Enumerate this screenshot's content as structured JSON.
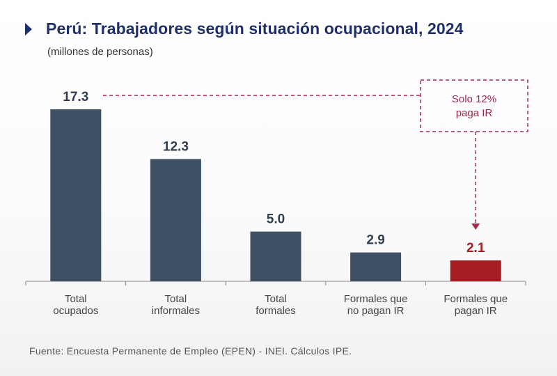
{
  "header": {
    "title": "Perú: Trabajadores según situación ocupacional, 2024",
    "subtitle": "(millones de personas)"
  },
  "chart_data": {
    "type": "bar",
    "title": "Perú: Trabajadores según situación ocupacional, 2024",
    "subtitle": "(millones de personas)",
    "ylabel": "millones de personas",
    "xlabel": "",
    "ylim": [
      0,
      18.5
    ],
    "grid": false,
    "categories": [
      [
        "Total",
        "ocupados"
      ],
      [
        "Total",
        "informales"
      ],
      [
        "Total",
        "formales"
      ],
      [
        "Formales que",
        "no pagan IR"
      ],
      [
        "Formales que",
        "pagan IR"
      ]
    ],
    "values": [
      17.3,
      12.3,
      5.0,
      2.9,
      2.1
    ],
    "value_labels": [
      "17.3",
      "12.3",
      "5.0",
      "2.9",
      "2.1"
    ],
    "highlight_index": 4,
    "colors": {
      "bar": "#3d5063",
      "highlight": "#a51d22",
      "annotation": "#a3274a",
      "axis": "#888888",
      "value_text": "#2e3e50"
    },
    "annotation": {
      "text": [
        "Solo 12%",
        "paga IR"
      ],
      "from_index": 0,
      "to_index": 4
    }
  },
  "footer": {
    "source": "Fuente: Encuesta Permanente de Empleo (EPEN) - INEI. Cálculos IPE."
  }
}
